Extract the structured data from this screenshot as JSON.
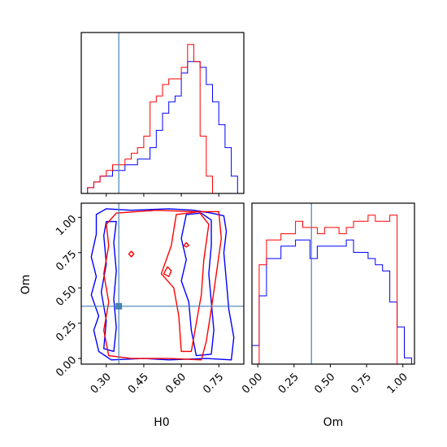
{
  "chart_data": {
    "type": "corner",
    "parameters": [
      "H0",
      "Om"
    ],
    "truths": {
      "H0": 0.35,
      "Om": 0.37
    },
    "colors": {
      "run_a": "#0000ff",
      "run_b": "#ff0000",
      "truth": "#4682b4"
    },
    "xlim": {
      "H0": [
        0.2,
        0.85
      ],
      "Om": [
        -0.04,
        1.08
      ]
    },
    "ylim": {
      "Om": [
        -0.04,
        1.1
      ]
    },
    "ticks": {
      "H0": {
        "values": [
          0.3,
          0.45,
          0.6,
          0.75
        ],
        "labels": [
          "0.30",
          "0.45",
          "0.60",
          "0.75"
        ]
      },
      "Om": {
        "values": [
          0.0,
          0.25,
          0.5,
          0.75,
          1.0
        ],
        "labels": [
          "0.00",
          "0.25",
          "0.50",
          "0.75",
          "1.00"
        ]
      }
    },
    "axis_labels": {
      "bottom_left": "H0",
      "bottom_right": "Om",
      "left_middle": "Om"
    },
    "hist_H0": {
      "edges": [
        0.2,
        0.225,
        0.25,
        0.275,
        0.3,
        0.325,
        0.35,
        0.375,
        0.4,
        0.425,
        0.45,
        0.475,
        0.5,
        0.525,
        0.55,
        0.575,
        0.6,
        0.625,
        0.65,
        0.675,
        0.7,
        0.725,
        0.75,
        0.775,
        0.8,
        0.825,
        0.85
      ],
      "series": [
        {
          "values": [
            0,
            1,
            2,
            3,
            3,
            4,
            4,
            5,
            5,
            6,
            6,
            8,
            11,
            14,
            16,
            17,
            21,
            23,
            23,
            22,
            19,
            16,
            12,
            8,
            3,
            0
          ]
        },
        {
          "values": [
            0,
            1,
            2,
            3,
            4,
            5,
            5,
            6,
            7,
            8,
            10,
            16,
            17,
            19,
            20,
            20,
            22,
            26,
            23,
            10,
            3,
            0,
            0,
            0,
            0,
            0
          ]
        }
      ]
    },
    "hist_Om": {
      "edges": [
        -0.04,
        0.01,
        0.06,
        0.11,
        0.16,
        0.21,
        0.26,
        0.31,
        0.36,
        0.41,
        0.46,
        0.51,
        0.56,
        0.61,
        0.66,
        0.71,
        0.76,
        0.81,
        0.86,
        0.91,
        0.96,
        1.01,
        1.06
      ],
      "series": [
        {
          "values": [
            3,
            11,
            17,
            17,
            19,
            19,
            20,
            20,
            17,
            19,
            19,
            19,
            19,
            20,
            18,
            18,
            17,
            16,
            15,
            10,
            6,
            1
          ]
        },
        {
          "values": [
            0,
            16,
            20,
            20,
            21,
            21,
            23,
            22,
            22,
            21,
            22,
            22,
            21,
            22,
            23,
            23,
            24,
            23,
            23,
            24,
            0,
            0
          ]
        }
      ]
    },
    "contours_2d": [
      {
        "series": 0,
        "points": [
          [
            0.26,
            1.02
          ],
          [
            0.3,
            1.06
          ],
          [
            0.4,
            1.05
          ],
          [
            0.55,
            1.06
          ],
          [
            0.65,
            1.05
          ],
          [
            0.72,
            1.03
          ],
          [
            0.77,
            1.01
          ],
          [
            0.78,
            0.9
          ],
          [
            0.77,
            0.75
          ],
          [
            0.78,
            0.55
          ],
          [
            0.79,
            0.35
          ],
          [
            0.81,
            0.15
          ],
          [
            0.8,
            -0.01
          ],
          [
            0.7,
            0.0
          ],
          [
            0.55,
            -0.01
          ],
          [
            0.45,
            0.0
          ],
          [
            0.32,
            -0.01
          ],
          [
            0.27,
            0.05
          ],
          [
            0.25,
            0.2
          ],
          [
            0.27,
            0.3
          ],
          [
            0.24,
            0.45
          ],
          [
            0.26,
            0.58
          ],
          [
            0.24,
            0.72
          ],
          [
            0.26,
            0.88
          ]
        ]
      },
      {
        "series": 0,
        "points": [
          [
            0.62,
            1.02
          ],
          [
            0.68,
            1.03
          ],
          [
            0.72,
            0.98
          ],
          [
            0.72,
            0.8
          ],
          [
            0.71,
            0.6
          ],
          [
            0.72,
            0.4
          ],
          [
            0.73,
            0.2
          ],
          [
            0.72,
            0.03
          ],
          [
            0.66,
            0.02
          ],
          [
            0.64,
            0.2
          ],
          [
            0.63,
            0.4
          ],
          [
            0.6,
            0.55
          ],
          [
            0.62,
            0.7
          ],
          [
            0.6,
            0.85
          ]
        ]
      },
      {
        "series": 0,
        "points": [
          [
            0.3,
            0.97
          ],
          [
            0.34,
            0.97
          ],
          [
            0.33,
            0.82
          ],
          [
            0.34,
            0.62
          ],
          [
            0.33,
            0.42
          ],
          [
            0.34,
            0.22
          ],
          [
            0.33,
            0.05
          ],
          [
            0.29,
            0.07
          ],
          [
            0.3,
            0.27
          ],
          [
            0.28,
            0.47
          ],
          [
            0.3,
            0.67
          ],
          [
            0.29,
            0.87
          ]
        ]
      },
      {
        "series": 1,
        "points": [
          [
            0.34,
            1.03
          ],
          [
            0.5,
            1.05
          ],
          [
            0.65,
            1.04
          ],
          [
            0.75,
            1.04
          ],
          [
            0.76,
            0.85
          ],
          [
            0.74,
            0.6
          ],
          [
            0.72,
            0.35
          ],
          [
            0.7,
            0.12
          ],
          [
            0.68,
            -0.01
          ],
          [
            0.55,
            0.0
          ],
          [
            0.4,
            0.0
          ],
          [
            0.31,
            0.02
          ],
          [
            0.29,
            0.2
          ],
          [
            0.31,
            0.4
          ],
          [
            0.29,
            0.6
          ],
          [
            0.31,
            0.8
          ],
          [
            0.3,
            0.95
          ]
        ]
      },
      {
        "series": 1,
        "points": [
          [
            0.58,
            1.02
          ],
          [
            0.67,
            1.04
          ],
          [
            0.71,
            0.95
          ],
          [
            0.69,
            0.7
          ],
          [
            0.68,
            0.45
          ],
          [
            0.66,
            0.25
          ],
          [
            0.64,
            0.05
          ],
          [
            0.6,
            0.05
          ],
          [
            0.59,
            0.3
          ],
          [
            0.57,
            0.5
          ],
          [
            0.52,
            0.6
          ],
          [
            0.56,
            0.8
          ]
        ]
      },
      {
        "series": 1,
        "points": [
          [
            0.545,
            0.65
          ],
          [
            0.56,
            0.62
          ],
          [
            0.55,
            0.58
          ],
          [
            0.53,
            0.6
          ]
        ]
      },
      {
        "series": 1,
        "points": [
          [
            0.4,
            0.76
          ],
          [
            0.41,
            0.74
          ],
          [
            0.4,
            0.72
          ],
          [
            0.39,
            0.74
          ]
        ]
      },
      {
        "series": 1,
        "points": [
          [
            0.62,
            0.82
          ],
          [
            0.63,
            0.8
          ],
          [
            0.62,
            0.79
          ],
          [
            0.61,
            0.8
          ]
        ]
      }
    ]
  }
}
